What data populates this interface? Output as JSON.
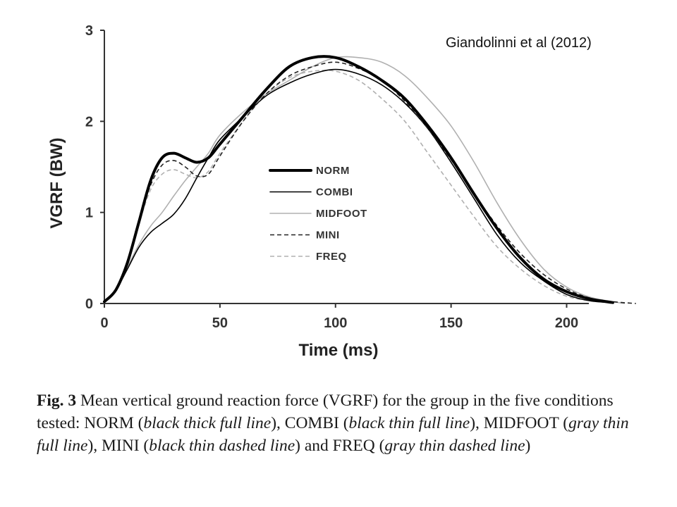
{
  "citation": "Giandolinni et al (2012)",
  "caption": {
    "fig_label": "Fig. 3",
    "segments": [
      {
        "text": " Mean vertical ground reaction force (VGRF) for the group in the five conditions tested: NORM (",
        "italic": false
      },
      {
        "text": "black thick full line",
        "italic": true
      },
      {
        "text": "), COMBI (",
        "italic": false
      },
      {
        "text": "black thin full line",
        "italic": true
      },
      {
        "text": "), MIDFOOT (",
        "italic": false
      },
      {
        "text": "gray thin full line",
        "italic": true
      },
      {
        "text": "), MINI (",
        "italic": false
      },
      {
        "text": "black thin dashed line",
        "italic": true
      },
      {
        "text": ") and FREQ (",
        "italic": false
      },
      {
        "text": "gray thin dashed line",
        "italic": true
      },
      {
        "text": ")",
        "italic": false
      }
    ]
  },
  "chart_data": {
    "type": "line",
    "title": "",
    "xlabel": "Time (ms)",
    "ylabel": "VGRF (BW)",
    "xlim": [
      0,
      225
    ],
    "ylim": [
      0,
      3
    ],
    "xticks": [
      0,
      50,
      100,
      150,
      200
    ],
    "yticks": [
      0,
      1,
      2,
      3
    ],
    "grid": false,
    "legend_position": "center",
    "series": [
      {
        "name": "NORM",
        "color": "#000000",
        "style": "thick-solid",
        "points": [
          [
            0,
            0.02
          ],
          [
            5,
            0.15
          ],
          [
            10,
            0.45
          ],
          [
            15,
            0.9
          ],
          [
            20,
            1.35
          ],
          [
            25,
            1.6
          ],
          [
            30,
            1.65
          ],
          [
            35,
            1.6
          ],
          [
            40,
            1.55
          ],
          [
            45,
            1.6
          ],
          [
            50,
            1.75
          ],
          [
            60,
            2.05
          ],
          [
            70,
            2.35
          ],
          [
            80,
            2.6
          ],
          [
            90,
            2.7
          ],
          [
            100,
            2.7
          ],
          [
            110,
            2.6
          ],
          [
            120,
            2.45
          ],
          [
            130,
            2.25
          ],
          [
            140,
            1.95
          ],
          [
            150,
            1.6
          ],
          [
            160,
            1.2
          ],
          [
            170,
            0.82
          ],
          [
            180,
            0.5
          ],
          [
            190,
            0.27
          ],
          [
            200,
            0.13
          ],
          [
            210,
            0.05
          ],
          [
            220,
            0.01
          ]
        ]
      },
      {
        "name": "COMBI",
        "color": "#000000",
        "style": "thin-solid",
        "points": [
          [
            0,
            0.02
          ],
          [
            5,
            0.15
          ],
          [
            10,
            0.38
          ],
          [
            15,
            0.62
          ],
          [
            20,
            0.78
          ],
          [
            25,
            0.88
          ],
          [
            30,
            0.98
          ],
          [
            35,
            1.15
          ],
          [
            40,
            1.38
          ],
          [
            45,
            1.6
          ],
          [
            50,
            1.8
          ],
          [
            60,
            2.05
          ],
          [
            70,
            2.28
          ],
          [
            80,
            2.42
          ],
          [
            90,
            2.52
          ],
          [
            100,
            2.57
          ],
          [
            110,
            2.52
          ],
          [
            120,
            2.4
          ],
          [
            130,
            2.2
          ],
          [
            140,
            1.92
          ],
          [
            150,
            1.55
          ],
          [
            160,
            1.15
          ],
          [
            170,
            0.75
          ],
          [
            180,
            0.45
          ],
          [
            190,
            0.25
          ],
          [
            200,
            0.1
          ],
          [
            210,
            0.03
          ],
          [
            220,
            0.01
          ]
        ]
      },
      {
        "name": "MIDFOOT",
        "color": "#b0b0b0",
        "style": "thin-solid",
        "points": [
          [
            0,
            0.02
          ],
          [
            5,
            0.15
          ],
          [
            10,
            0.4
          ],
          [
            15,
            0.65
          ],
          [
            20,
            0.85
          ],
          [
            25,
            1.0
          ],
          [
            30,
            1.18
          ],
          [
            35,
            1.35
          ],
          [
            40,
            1.5
          ],
          [
            45,
            1.65
          ],
          [
            50,
            1.85
          ],
          [
            60,
            2.1
          ],
          [
            70,
            2.3
          ],
          [
            80,
            2.45
          ],
          [
            90,
            2.6
          ],
          [
            100,
            2.7
          ],
          [
            110,
            2.7
          ],
          [
            120,
            2.65
          ],
          [
            130,
            2.5
          ],
          [
            140,
            2.25
          ],
          [
            150,
            1.95
          ],
          [
            160,
            1.55
          ],
          [
            170,
            1.1
          ],
          [
            180,
            0.7
          ],
          [
            190,
            0.38
          ],
          [
            200,
            0.18
          ],
          [
            210,
            0.07
          ],
          [
            220,
            0.02
          ],
          [
            225,
            0.0
          ]
        ]
      },
      {
        "name": "MINI",
        "color": "#222222",
        "style": "thin-dashed",
        "points": [
          [
            0,
            0.02
          ],
          [
            5,
            0.15
          ],
          [
            10,
            0.45
          ],
          [
            15,
            0.9
          ],
          [
            20,
            1.3
          ],
          [
            25,
            1.52
          ],
          [
            30,
            1.57
          ],
          [
            35,
            1.5
          ],
          [
            40,
            1.4
          ],
          [
            45,
            1.42
          ],
          [
            50,
            1.62
          ],
          [
            60,
            2.0
          ],
          [
            70,
            2.3
          ],
          [
            80,
            2.5
          ],
          [
            90,
            2.6
          ],
          [
            100,
            2.65
          ],
          [
            110,
            2.58
          ],
          [
            120,
            2.45
          ],
          [
            130,
            2.22
          ],
          [
            140,
            1.92
          ],
          [
            150,
            1.58
          ],
          [
            160,
            1.2
          ],
          [
            170,
            0.85
          ],
          [
            180,
            0.55
          ],
          [
            190,
            0.32
          ],
          [
            200,
            0.16
          ],
          [
            210,
            0.06
          ],
          [
            220,
            0.02
          ],
          [
            230,
            0.0
          ]
        ]
      },
      {
        "name": "FREQ",
        "color": "#b0b0b0",
        "style": "thin-dashed",
        "points": [
          [
            0,
            0.02
          ],
          [
            5,
            0.15
          ],
          [
            10,
            0.45
          ],
          [
            15,
            0.88
          ],
          [
            20,
            1.25
          ],
          [
            25,
            1.42
          ],
          [
            30,
            1.47
          ],
          [
            35,
            1.42
          ],
          [
            40,
            1.38
          ],
          [
            45,
            1.45
          ],
          [
            50,
            1.65
          ],
          [
            60,
            2.0
          ],
          [
            70,
            2.3
          ],
          [
            80,
            2.48
          ],
          [
            90,
            2.55
          ],
          [
            100,
            2.55
          ],
          [
            110,
            2.45
          ],
          [
            120,
            2.25
          ],
          [
            130,
            2.0
          ],
          [
            140,
            1.65
          ],
          [
            150,
            1.3
          ],
          [
            160,
            0.95
          ],
          [
            170,
            0.62
          ],
          [
            180,
            0.38
          ],
          [
            190,
            0.2
          ],
          [
            200,
            0.08
          ],
          [
            210,
            0.03
          ],
          [
            220,
            0.01
          ]
        ]
      }
    ]
  }
}
